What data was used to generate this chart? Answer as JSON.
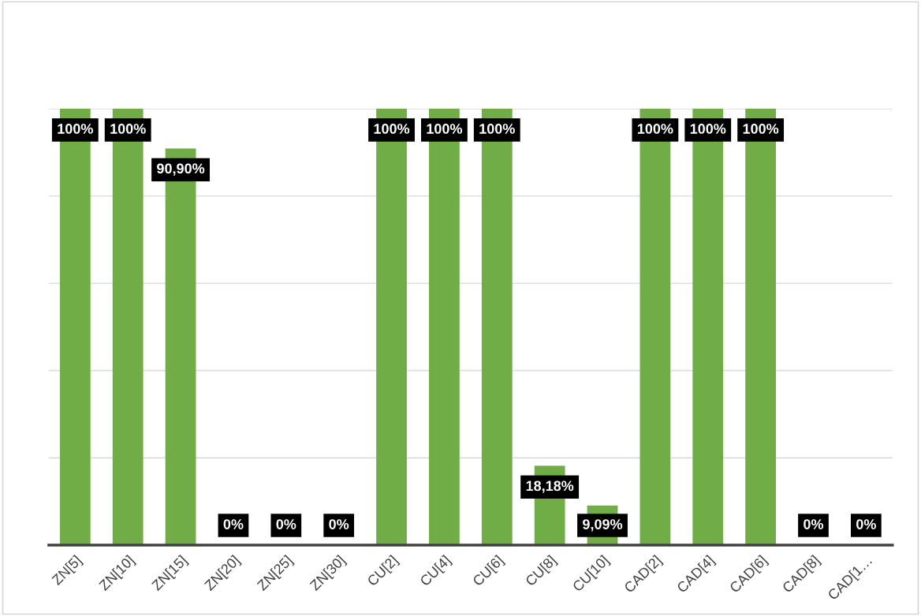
{
  "chart_data": {
    "type": "bar",
    "categories": [
      "ZN[5]",
      "ZN[10]",
      "ZN[15]",
      "ZN[20]",
      "ZN[25]",
      "ZN[30]",
      "CU[2]",
      "CU[4]",
      "CU[6]",
      "CU[8]",
      "CU[10]",
      "CAD[2]",
      "CAD[4]",
      "CAD[6]",
      "CAD[8]",
      "CAD[1…"
    ],
    "values": [
      100,
      100,
      90.9,
      0,
      0,
      0,
      100,
      100,
      100,
      18.18,
      9.09,
      100,
      100,
      100,
      0,
      0
    ],
    "value_labels": [
      "100%",
      "100%",
      "90,90%",
      "0%",
      "0%",
      "0%",
      "100%",
      "100%",
      "100%",
      "18,18%",
      "9,09%",
      "100%",
      "100%",
      "100%",
      "0%",
      "0%"
    ],
    "color": "#70ad47",
    "ylim": [
      0,
      100
    ],
    "yticks": [
      {
        "value": 0,
        "label": null
      },
      {
        "value": 20,
        "label": null
      },
      {
        "value": 40,
        "label": null
      },
      {
        "value": 60,
        "label": null
      },
      {
        "value": 80,
        "label": null
      },
      {
        "value": 100,
        "label": null
      }
    ],
    "tick_labels": "x",
    "grid": "y"
  }
}
